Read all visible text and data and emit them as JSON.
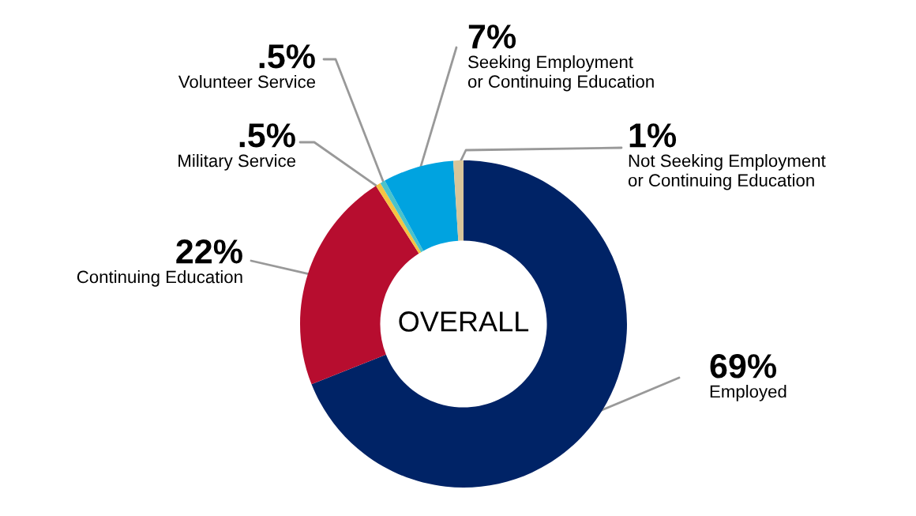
{
  "chart_data": {
    "type": "donut",
    "categories": [
      "Employed",
      "Continuing Education",
      "Military Service",
      "Volunteer Service",
      "Seeking Employment\nor Continuing Education",
      "Not Seeking Employment\nor Continuing Education"
    ],
    "values": [
      69,
      22,
      0.5,
      0.5,
      7,
      1
    ],
    "value_labels": [
      "69%",
      "22%",
      ".5%",
      ".5%",
      "7%",
      "1%"
    ],
    "colors": [
      "#002366",
      "#b70d2f",
      "#f5c342",
      "#4cc3c9",
      "#00a3e0",
      "#d8c59a"
    ],
    "annotations": [
      "OVERALL"
    ],
    "legend": false
  }
}
